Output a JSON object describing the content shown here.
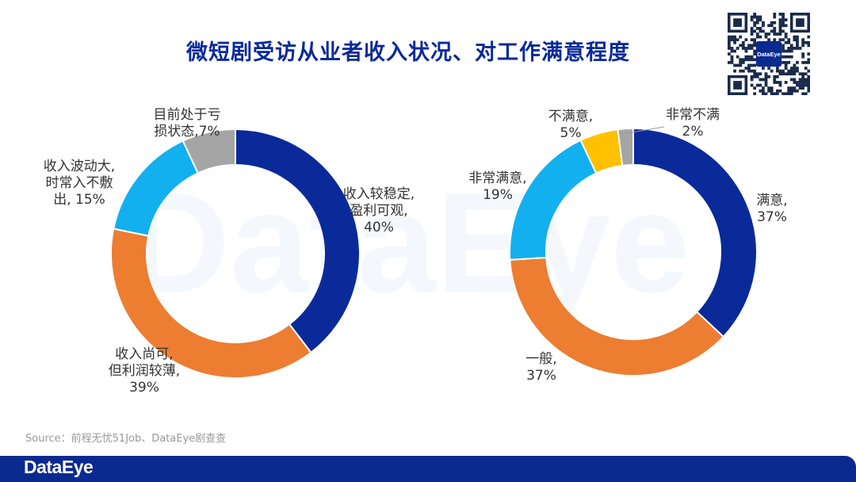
{
  "title": "微短剧受访从业者收入状况、对工作满意程度",
  "source": "Source：前程无忧51Job、DataEye剧查查",
  "brand": {
    "name": "DataEye",
    "color": "#0a2a8f"
  },
  "qr_label": "DataEye",
  "chart_data": [
    {
      "type": "pie",
      "donut": true,
      "title": "",
      "slices": [
        {
          "label": [
            "收入较稳定,",
            "盈利可观,",
            "40%"
          ],
          "name": "收入较稳定，盈利可观",
          "value": 40,
          "color": "#0a2a9a"
        },
        {
          "label": [
            "收入尚可,",
            "但利润较薄,",
            "39%"
          ],
          "name": "收入尚可，但利润较薄",
          "value": 39,
          "color": "#ed7d31"
        },
        {
          "label": [
            "收入波动大,",
            "时常入不敷",
            "出, 15%"
          ],
          "name": "收入波动大，时常入不敷出",
          "value": 15,
          "color": "#13b0ef"
        },
        {
          "label": [
            "目前处于亏",
            "损状态,7%"
          ],
          "name": "目前处于亏损状态",
          "value": 7,
          "color": "#a5a5a5"
        }
      ]
    },
    {
      "type": "pie",
      "donut": true,
      "title": "",
      "slices": [
        {
          "label": [
            "满意,",
            "37%"
          ],
          "name": "满意",
          "value": 37,
          "color": "#0a2a9a"
        },
        {
          "label": [
            "一般,",
            "37%"
          ],
          "name": "一般",
          "value": 37,
          "color": "#ed7d31"
        },
        {
          "label": [
            "非常满意,",
            "19%"
          ],
          "name": "非常满意",
          "value": 19,
          "color": "#13b0ef"
        },
        {
          "label": [
            "不满意,",
            "5%"
          ],
          "name": "不满意",
          "value": 5,
          "color": "#ffc000"
        },
        {
          "label": [
            "非常不满",
            "2%"
          ],
          "name": "非常不满",
          "value": 2,
          "color": "#a5a5a5"
        }
      ]
    }
  ]
}
